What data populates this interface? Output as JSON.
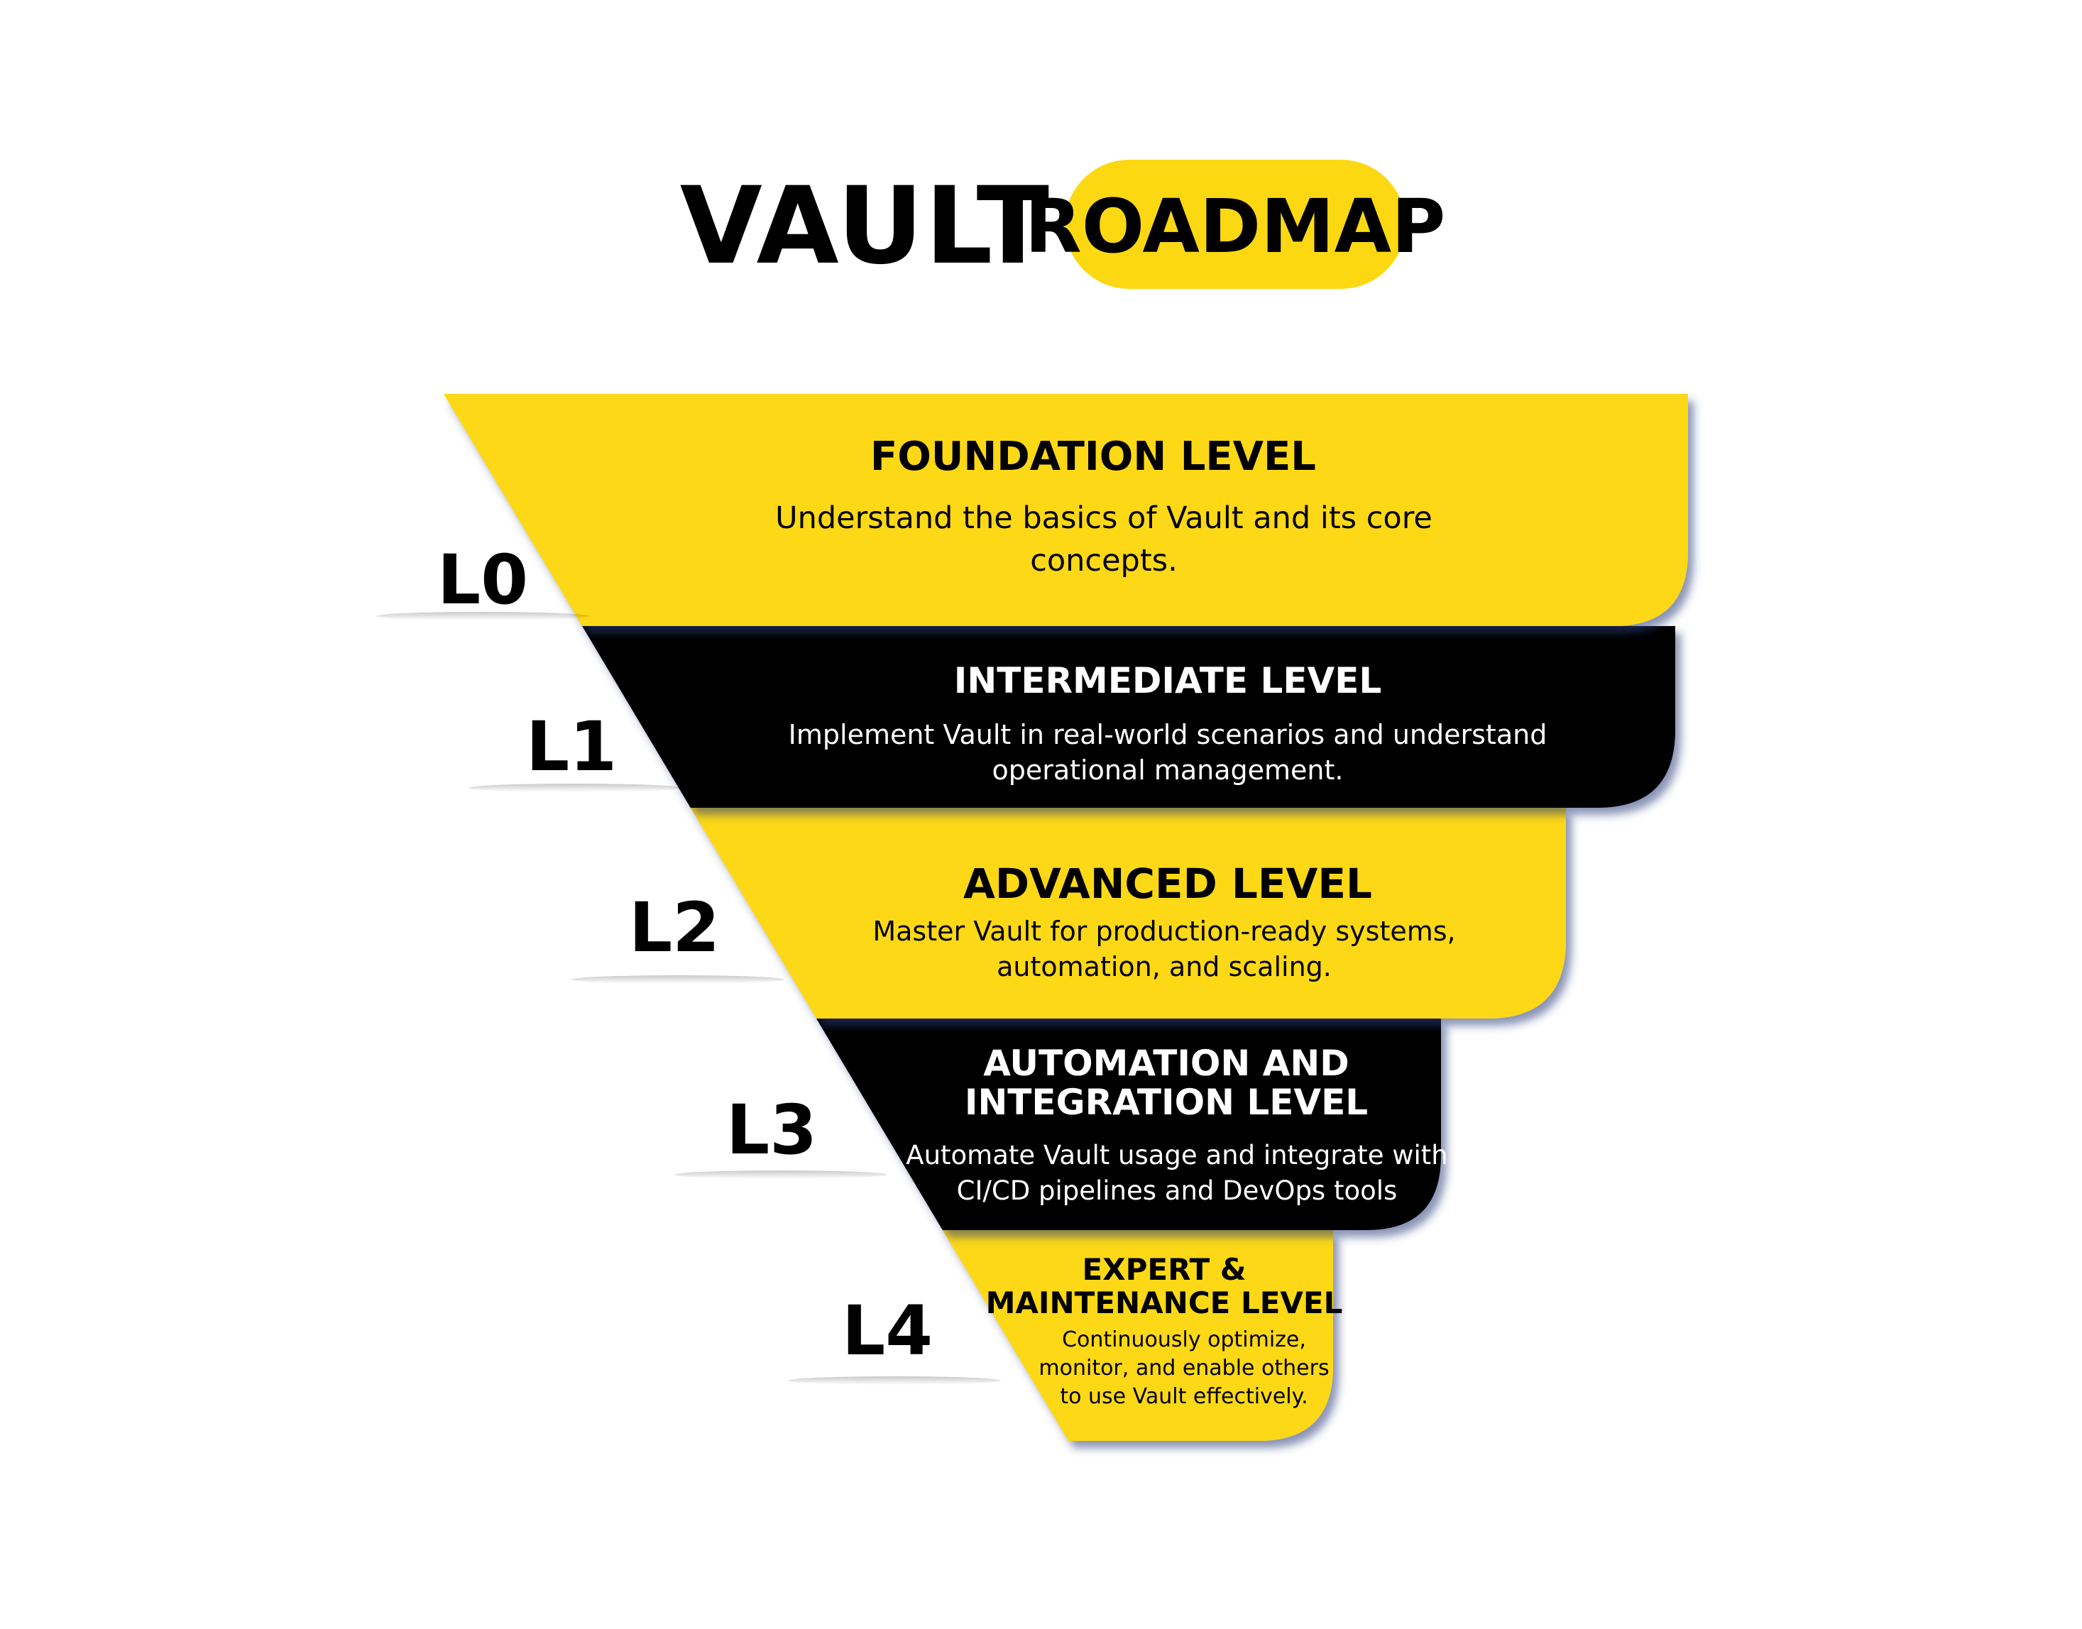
{
  "title": {
    "word": "VAULT",
    "badge": "ROADMAP"
  },
  "colors": {
    "yellow": "#fcd812",
    "black": "#000000",
    "white": "#ffffff",
    "shadow": "#2a3d7a"
  },
  "levels": [
    {
      "code": "L0",
      "title": [
        "FOUNDATION LEVEL"
      ],
      "description": [
        "Understand the basics of Vault and its core",
        "concepts."
      ],
      "fill": "yellow"
    },
    {
      "code": "L1",
      "title": [
        "INTERMEDIATE LEVEL"
      ],
      "description": [
        "Implement Vault in real-world scenarios and understand",
        "operational management."
      ],
      "fill": "black"
    },
    {
      "code": "L2",
      "title": [
        "ADVANCED LEVEL"
      ],
      "description": [
        "Master Vault for production-ready systems,",
        "automation, and scaling."
      ],
      "fill": "yellow"
    },
    {
      "code": "L3",
      "title": [
        "AUTOMATION AND",
        "INTEGRATION LEVEL"
      ],
      "description": [
        "Automate Vault usage and integrate with",
        "CI/CD pipelines and DevOps tools"
      ],
      "fill": "black"
    },
    {
      "code": "L4",
      "title": [
        "EXPERT &",
        "MAINTENANCE LEVEL"
      ],
      "description": [
        "Continuously optimize,",
        "monitor, and enable others",
        "to use Vault effectively."
      ],
      "fill": "yellow"
    }
  ]
}
